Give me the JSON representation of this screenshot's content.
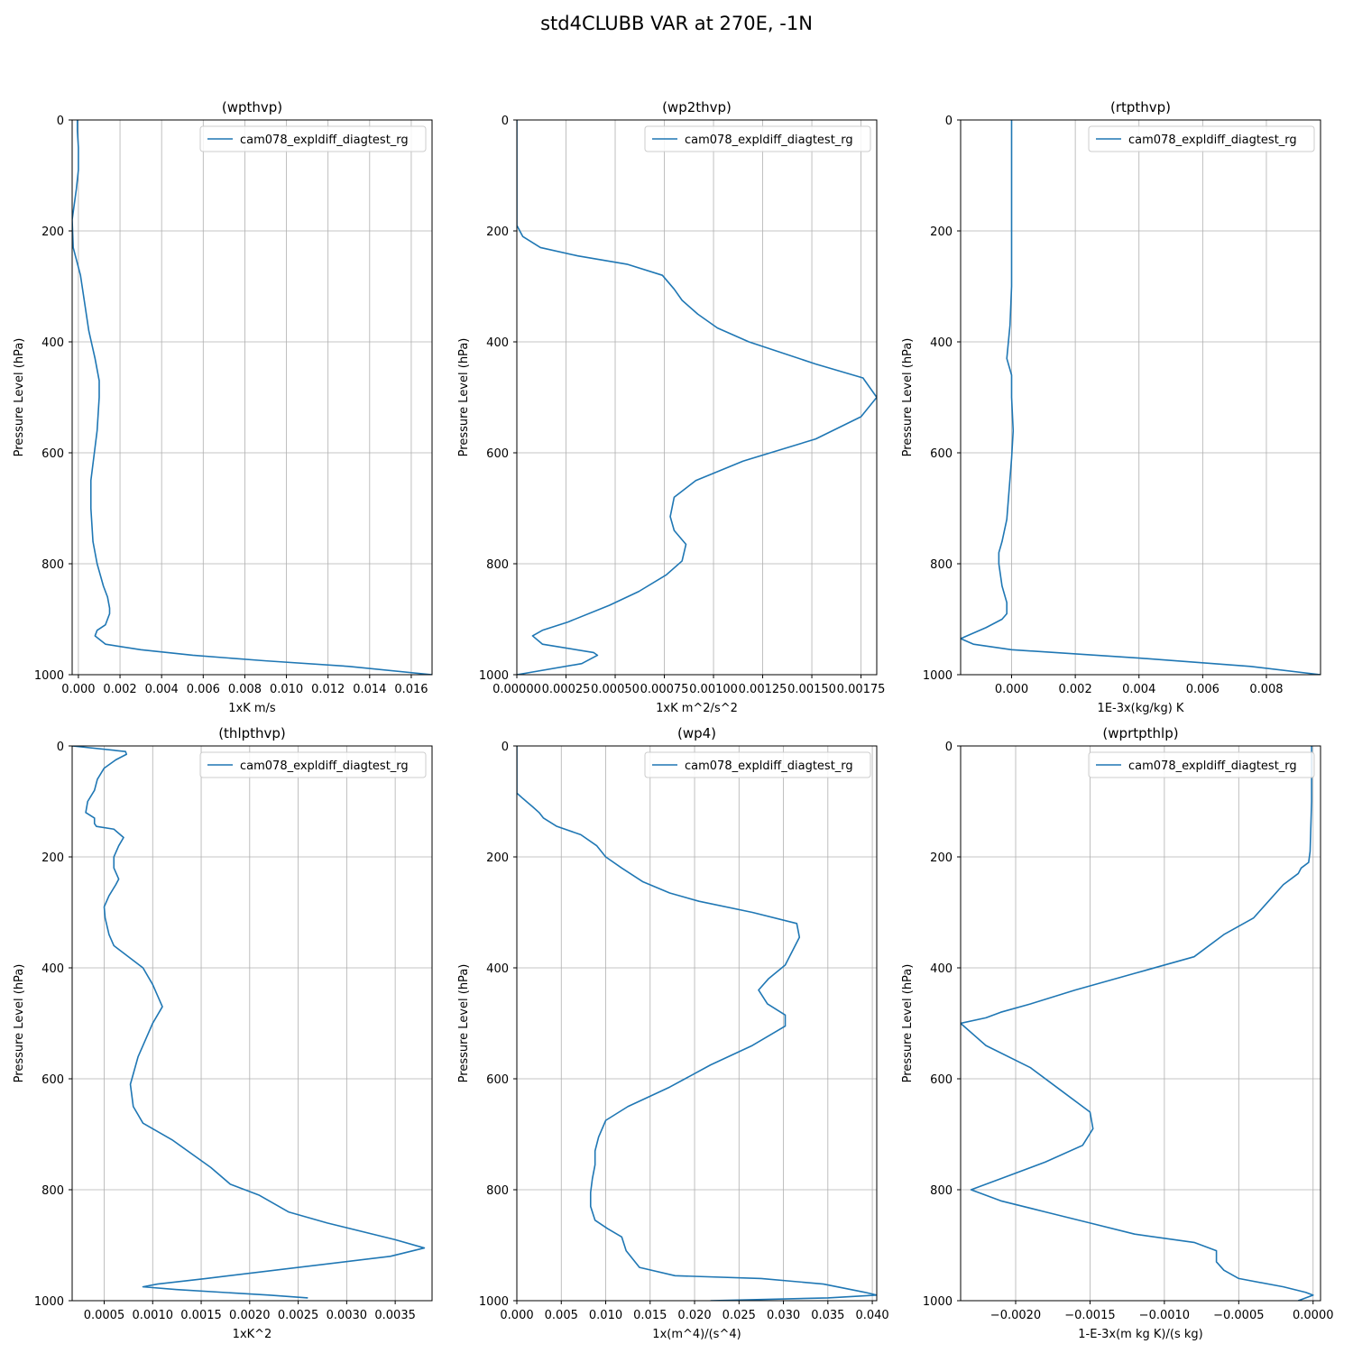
{
  "figure": {
    "suptitle": "std4CLUBB VAR at 270E, -1N"
  },
  "chart_data": [
    {
      "type": "line",
      "title": "(wpthvp)",
      "xlabel": "1xK m/s",
      "ylabel": "Pressure Level (hPa)",
      "xlim": [
        -0.0003,
        0.017
      ],
      "ylim": [
        1000,
        0
      ],
      "xticks": [
        0.0,
        0.002,
        0.004,
        0.006,
        0.008,
        0.01,
        0.012,
        0.014,
        0.016
      ],
      "xtick_labels": [
        "0.000",
        "0.002",
        "0.004",
        "0.006",
        "0.008",
        "0.010",
        "0.012",
        "0.014",
        "0.016"
      ],
      "yticks": [
        0,
        200,
        400,
        600,
        800,
        1000
      ],
      "ytick_labels": [
        "0",
        "200",
        "400",
        "600",
        "800",
        "1000"
      ],
      "grid": true,
      "legend": "upper right",
      "series": [
        {
          "name": "cam078_expldiff_diagtest_rg",
          "x": [
            -5e-05,
            -5e-05,
            0.0,
            0.0,
            -0.0001,
            -0.0003,
            -0.00025,
            0.0001,
            0.0003,
            0.0005,
            0.0008,
            0.001,
            0.001,
            0.0009,
            0.0007,
            0.0006,
            0.0006,
            0.0007,
            0.0009,
            0.0012,
            0.0014,
            0.0015,
            0.0015,
            0.0013,
            0.0009,
            0.0008,
            0.0013,
            0.003,
            0.0055,
            0.009,
            0.013,
            0.017
          ],
          "y": [
            0,
            20,
            50,
            90,
            125,
            180,
            230,
            280,
            330,
            380,
            430,
            470,
            500,
            560,
            620,
            650,
            700,
            760,
            800,
            840,
            860,
            880,
            890,
            910,
            920,
            930,
            945,
            955,
            965,
            975,
            985,
            1000
          ]
        }
      ]
    },
    {
      "type": "line",
      "title": "(wp2thvp)",
      "xlabel": "1xK m^2/s^2",
      "ylabel": "Pressure Level (hPa)",
      "xlim": [
        0,
        0.00183
      ],
      "ylim": [
        1000,
        0
      ],
      "xticks": [
        0,
        0.00025,
        0.0005,
        0.00075,
        0.001,
        0.00125,
        0.0015,
        0.00175
      ],
      "xtick_labels": [
        "0.00000",
        "0.00025",
        "0.00050",
        "0.00075",
        "0.00100",
        "0.00125",
        "0.00150",
        "0.00175"
      ],
      "yticks": [
        0,
        200,
        400,
        600,
        800,
        1000
      ],
      "ytick_labels": [
        "0",
        "200",
        "400",
        "600",
        "800",
        "1000"
      ],
      "grid": true,
      "legend": "upper right",
      "series": [
        {
          "name": "cam078_expldiff_diagtest_rg",
          "x": [
            0.0,
            0.0,
            0.0,
            0.0,
            3e-05,
            0.00012,
            0.00031,
            0.00056,
            0.00074,
            0.0008,
            0.00084,
            0.00092,
            0.00102,
            0.00118,
            0.00152,
            0.00176,
            0.00183,
            0.00175,
            0.00152,
            0.00115,
            0.00091,
            0.0008,
            0.00078,
            0.0008,
            0.00086,
            0.00084,
            0.00076,
            0.00062,
            0.00047,
            0.00026,
            0.00013,
            8e-05,
            0.00013,
            0.00039,
            0.00041,
            0.00033,
            0.0
          ],
          "y": [
            0,
            50,
            100,
            190,
            210,
            230,
            245,
            260,
            280,
            305,
            325,
            350,
            375,
            400,
            440,
            465,
            500,
            535,
            575,
            615,
            650,
            680,
            715,
            740,
            765,
            795,
            820,
            850,
            875,
            905,
            920,
            930,
            945,
            960,
            965,
            980,
            1000
          ]
        }
      ]
    },
    {
      "type": "line",
      "title": "(rtpthvp)",
      "xlabel": "1E-3x(kg/kg) K",
      "ylabel": "Pressure Level (hPa)",
      "xlim": [
        -0.0016,
        0.0097
      ],
      "ylim": [
        1000,
        0
      ],
      "xticks": [
        0.0,
        0.002,
        0.004,
        0.006,
        0.008
      ],
      "xtick_labels": [
        "0.000",
        "0.002",
        "0.004",
        "0.006",
        "0.008"
      ],
      "yticks": [
        0,
        200,
        400,
        600,
        800,
        1000
      ],
      "ytick_labels": [
        "0",
        "200",
        "400",
        "600",
        "800",
        "1000"
      ],
      "grid": true,
      "legend": "upper right",
      "series": [
        {
          "name": "cam078_expldiff_diagtest_rg",
          "x": [
            0.0,
            0.0,
            0.0,
            0.0,
            -5e-05,
            -0.0001,
            -0.00015,
            0.0,
            0.0,
            5e-05,
            0.0,
            -0.00015,
            -0.0003,
            -0.0004,
            -0.0004,
            -0.0003,
            -0.00015,
            -0.00015,
            -0.0003,
            -0.0008,
            -0.0012,
            -0.0016,
            -0.0012,
            0.0,
            0.004,
            0.0075,
            0.0097
          ],
          "y": [
            0,
            100,
            200,
            300,
            370,
            400,
            430,
            460,
            500,
            560,
            610,
            720,
            760,
            780,
            800,
            840,
            870,
            890,
            900,
            915,
            925,
            935,
            945,
            955,
            970,
            985,
            1000
          ]
        }
      ]
    },
    {
      "type": "line",
      "title": "(thlpthvp)",
      "xlabel": "1xK^2",
      "ylabel": "Pressure Level (hPa)",
      "xlim": [
        0.00017,
        0.00388
      ],
      "ylim": [
        1000,
        0
      ],
      "xticks": [
        0.0005,
        0.001,
        0.0015,
        0.002,
        0.0025,
        0.003,
        0.0035
      ],
      "xtick_labels": [
        "0.0005",
        "0.0010",
        "0.0015",
        "0.0020",
        "0.0025",
        "0.0030",
        "0.0035"
      ],
      "yticks": [
        0,
        200,
        400,
        600,
        800,
        1000
      ],
      "ytick_labels": [
        "0",
        "200",
        "400",
        "600",
        "800",
        "1000"
      ],
      "grid": true,
      "legend": "upper right",
      "series": [
        {
          "name": "cam078_expldiff_diagtest_rg",
          "x": [
            0.00017,
            0.00072,
            0.00073,
            0.00062,
            0.0005,
            0.00043,
            0.0004,
            0.00033,
            0.00031,
            0.0004,
            0.0004,
            0.00042,
            0.0006,
            0.0007,
            0.00065,
            0.0006,
            0.0006,
            0.00065,
            0.00062,
            0.00055,
            0.0005,
            0.00051,
            0.00055,
            0.0006,
            0.0009,
            0.001,
            0.0011,
            0.001,
            0.00085,
            0.00077,
            0.0008,
            0.0009,
            0.0012,
            0.0016,
            0.0018,
            0.0021,
            0.0024,
            0.0028,
            0.0035,
            0.0038,
            0.00345,
            0.00155,
            0.00105,
            0.0009,
            0.00125,
            0.0022,
            0.0026
          ],
          "y": [
            0,
            10,
            15,
            25,
            40,
            60,
            80,
            100,
            120,
            130,
            140,
            145,
            150,
            165,
            180,
            200,
            220,
            240,
            250,
            270,
            290,
            310,
            340,
            360,
            400,
            430,
            470,
            500,
            560,
            610,
            650,
            680,
            710,
            760,
            790,
            810,
            840,
            860,
            890,
            905,
            920,
            960,
            970,
            975,
            980,
            990,
            995
          ]
        }
      ]
    },
    {
      "type": "line",
      "title": "(wp4)",
      "xlabel": "1x(m^4)/(s^4)",
      "ylabel": "Pressure Level (hPa)",
      "xlim": [
        0,
        0.0405
      ],
      "ylim": [
        1000,
        0
      ],
      "xticks": [
        0.0,
        0.005,
        0.01,
        0.015,
        0.02,
        0.025,
        0.03,
        0.035,
        0.04
      ],
      "xtick_labels": [
        "0.000",
        "0.005",
        "0.010",
        "0.015",
        "0.020",
        "0.025",
        "0.030",
        "0.035",
        "0.040"
      ],
      "yticks": [
        0,
        200,
        400,
        600,
        800,
        1000
      ],
      "ytick_labels": [
        "0",
        "200",
        "400",
        "600",
        "800",
        "1000"
      ],
      "grid": true,
      "legend": "upper right",
      "series": [
        {
          "name": "cam078_expldiff_diagtest_rg",
          "x": [
            0.0,
            0.0,
            0.0007,
            0.0018,
            0.0025,
            0.003,
            0.0045,
            0.0072,
            0.009,
            0.01,
            0.0118,
            0.0142,
            0.0172,
            0.0205,
            0.0265,
            0.0315,
            0.0318,
            0.031,
            0.0302,
            0.0283,
            0.0272,
            0.0282,
            0.0302,
            0.0302,
            0.0265,
            0.0218,
            0.0172,
            0.0125,
            0.01,
            0.0092,
            0.0088,
            0.0088,
            0.0085,
            0.0083,
            0.0083,
            0.0088,
            0.0102,
            0.0118,
            0.0123,
            0.0138,
            0.0178,
            0.0275,
            0.0345,
            0.0392,
            0.0405,
            0.035,
            0.0218
          ],
          "y": [
            0,
            85,
            95,
            110,
            120,
            130,
            145,
            160,
            180,
            200,
            220,
            245,
            265,
            280,
            300,
            320,
            345,
            370,
            395,
            420,
            440,
            465,
            485,
            505,
            540,
            575,
            615,
            650,
            675,
            705,
            730,
            755,
            780,
            805,
            830,
            855,
            870,
            885,
            910,
            940,
            955,
            960,
            970,
            985,
            990,
            995,
            1000
          ]
        }
      ]
    },
    {
      "type": "line",
      "title": "(wprtpthlp)",
      "xlabel": "1-E-3x(m kg K)/(s kg)",
      "ylabel": "Pressure Level (hPa)",
      "xlim": [
        -0.00237,
        5e-05
      ],
      "ylim": [
        1000,
        0
      ],
      "xticks": [
        -0.002,
        -0.0015,
        -0.001,
        -0.0005,
        0.0
      ],
      "xtick_labels": [
        "−0.0020",
        "−0.0015",
        "−0.0010",
        "−0.0005",
        "0.0000"
      ],
      "yticks": [
        0,
        200,
        400,
        600,
        800,
        1000
      ],
      "ytick_labels": [
        "0",
        "200",
        "400",
        "600",
        "800",
        "1000"
      ],
      "grid": true,
      "legend": "upper right",
      "series": [
        {
          "name": "cam078_expldiff_diagtest_rg",
          "x": [
            -1e-05,
            -1e-05,
            -2e-05,
            -3e-05,
            -8e-05,
            -0.0001,
            -0.0002,
            -0.0003,
            -0.0004,
            -0.0006,
            -0.0008,
            -0.0012,
            -0.0016,
            -0.0019,
            -0.0021,
            -0.0022,
            -0.00237,
            -0.0022,
            -0.0019,
            -0.0017,
            -0.0015,
            -0.00148,
            -0.00155,
            -0.0018,
            -0.0021,
            -0.0023,
            -0.0021,
            -0.0018,
            -0.0015,
            -0.0012,
            -0.0008,
            -0.00065,
            -0.00065,
            -0.0006,
            -0.0005,
            -0.0002,
            -5e-05,
            0.0,
            -0.0001
          ],
          "y": [
            0,
            100,
            190,
            210,
            220,
            230,
            250,
            280,
            310,
            340,
            380,
            410,
            440,
            465,
            480,
            490,
            500,
            540,
            580,
            620,
            660,
            690,
            720,
            750,
            780,
            800,
            820,
            840,
            860,
            880,
            895,
            910,
            930,
            945,
            960,
            975,
            985,
            990,
            1000
          ]
        }
      ]
    }
  ]
}
